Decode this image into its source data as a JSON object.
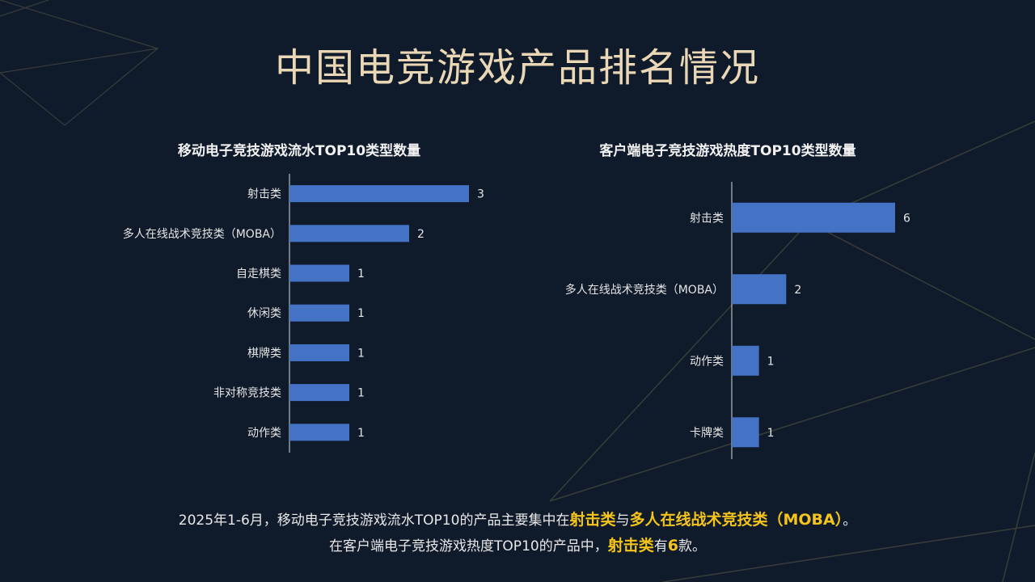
{
  "title": "中国电竞游戏产品排名情况",
  "colors": {
    "bar": "#4472c4",
    "accent": "#f4c41c",
    "background": "#0f1a2b"
  },
  "chart_data": [
    {
      "type": "bar",
      "orientation": "horizontal",
      "title": "移动电子竞技游戏流水TOP10类型数量",
      "categories": [
        "射击类",
        "多人在线战术竞技类（MOBA）",
        "自走棋类",
        "休闲类",
        "棋牌类",
        "非对称竞技类",
        "动作类"
      ],
      "values": [
        3,
        2,
        1,
        1,
        1,
        1,
        1
      ],
      "xlim": [
        0,
        3
      ],
      "grid": false
    },
    {
      "type": "bar",
      "orientation": "horizontal",
      "title": "客户端电子竞技游戏热度TOP10类型数量",
      "categories": [
        "射击类",
        "多人在线战术竞技类（MOBA）",
        "动作类",
        "卡牌类"
      ],
      "values": [
        6,
        2,
        1,
        1
      ],
      "xlim": [
        0,
        6
      ],
      "grid": false
    }
  ],
  "footer": {
    "line1_a": "2025年1-6月，移动电子竞技游戏流水TOP10的产品主要集中在",
    "line1_hl1": "射击类",
    "line1_b": "与",
    "line1_hl2": "多人在线战术竞技类（MOBA）",
    "line1_c": "。",
    "line2_a": "在客户端电子竞技游戏热度TOP10的产品中，",
    "line2_hl1": "射击类",
    "line2_b": "有",
    "line2_hl2": "6",
    "line2_c": "款。"
  }
}
